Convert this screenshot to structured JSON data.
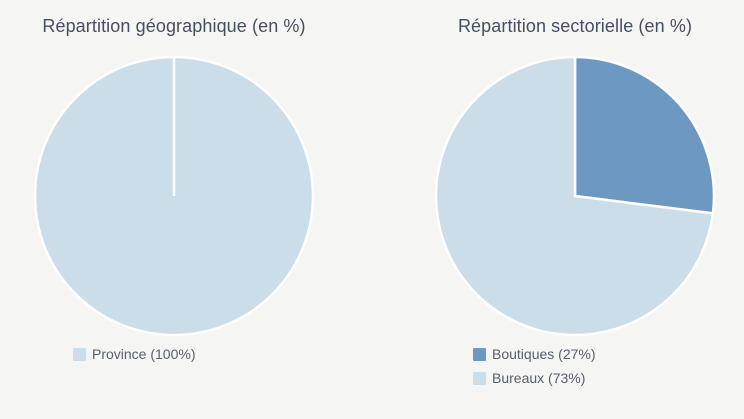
{
  "page": {
    "background_color": "#f5f5f4",
    "title_color": "#464f61",
    "legend_text_color": "#57606e",
    "slice_border_color": "#ffffff"
  },
  "chart_data": [
    {
      "type": "pie",
      "title": "Répartition géographique (en %)",
      "start_angle": 0,
      "direction": "clockwise",
      "legend_position": "bottom",
      "series": [
        {
          "name": "Province",
          "value": 100,
          "label": "Province (100%)",
          "color": "#cadde9"
        }
      ]
    },
    {
      "type": "pie",
      "title": "Répartition sectorielle (en %)",
      "start_angle": 0,
      "direction": "clockwise",
      "legend_position": "bottom",
      "series": [
        {
          "name": "Boutiques",
          "value": 27,
          "label": "Boutiques (27%)",
          "color": "#6d98c2"
        },
        {
          "name": "Bureaux",
          "value": 73,
          "label": "Bureaux (73%)",
          "color": "#cadde9"
        }
      ]
    }
  ]
}
